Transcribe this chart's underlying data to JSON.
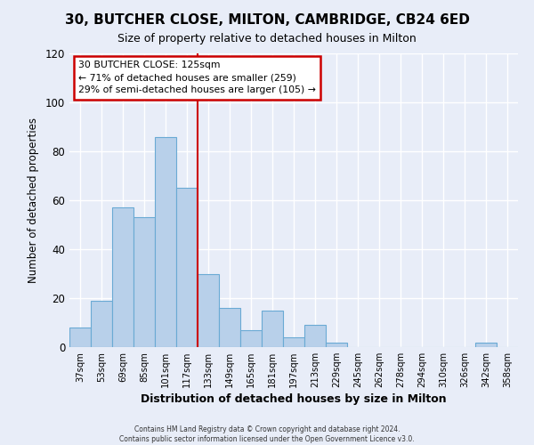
{
  "title": "30, BUTCHER CLOSE, MILTON, CAMBRIDGE, CB24 6ED",
  "subtitle": "Size of property relative to detached houses in Milton",
  "xlabel": "Distribution of detached houses by size in Milton",
  "ylabel": "Number of detached properties",
  "bar_labels": [
    "37sqm",
    "53sqm",
    "69sqm",
    "85sqm",
    "101sqm",
    "117sqm",
    "133sqm",
    "149sqm",
    "165sqm",
    "181sqm",
    "197sqm",
    "213sqm",
    "229sqm",
    "245sqm",
    "262sqm",
    "278sqm",
    "294sqm",
    "310sqm",
    "326sqm",
    "342sqm",
    "358sqm"
  ],
  "bar_values": [
    8,
    19,
    57,
    53,
    86,
    65,
    30,
    16,
    7,
    15,
    4,
    9,
    2,
    0,
    0,
    0,
    0,
    0,
    0,
    2,
    0
  ],
  "bar_color": "#b8d0ea",
  "bar_edge_color": "#6aaad4",
  "ylim": [
    0,
    120
  ],
  "yticks": [
    0,
    20,
    40,
    60,
    80,
    100,
    120
  ],
  "vline_color": "#cc0000",
  "annotation_title": "30 BUTCHER CLOSE: 125sqm",
  "annotation_line1": "← 71% of detached houses are smaller (259)",
  "annotation_line2": "29% of semi-detached houses are larger (105) →",
  "annotation_box_color": "#ffffff",
  "annotation_box_edge": "#cc0000",
  "footer1": "Contains HM Land Registry data © Crown copyright and database right 2024.",
  "footer2": "Contains public sector information licensed under the Open Government Licence v3.0.",
  "bg_color": "#e8edf8",
  "plot_bg_color": "#e8edf8",
  "grid_color": "#ffffff",
  "title_fontsize": 11,
  "subtitle_fontsize": 9
}
